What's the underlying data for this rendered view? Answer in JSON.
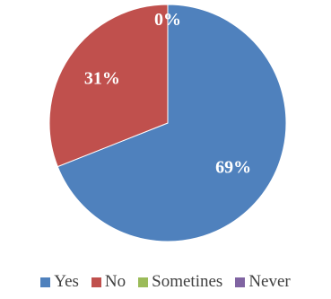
{
  "chart_data": {
    "type": "pie",
    "categories": [
      "Yes",
      "No",
      "Sometines",
      "Never"
    ],
    "values": [
      69,
      31,
      0,
      0
    ],
    "labels": [
      "69%",
      "31%",
      "0%",
      ""
    ],
    "colors": [
      "#4F81BD",
      "#C0504D",
      "#9BBB59",
      "#8064A2"
    ],
    "label_color": "#ffffff",
    "legend_position": "bottom"
  }
}
